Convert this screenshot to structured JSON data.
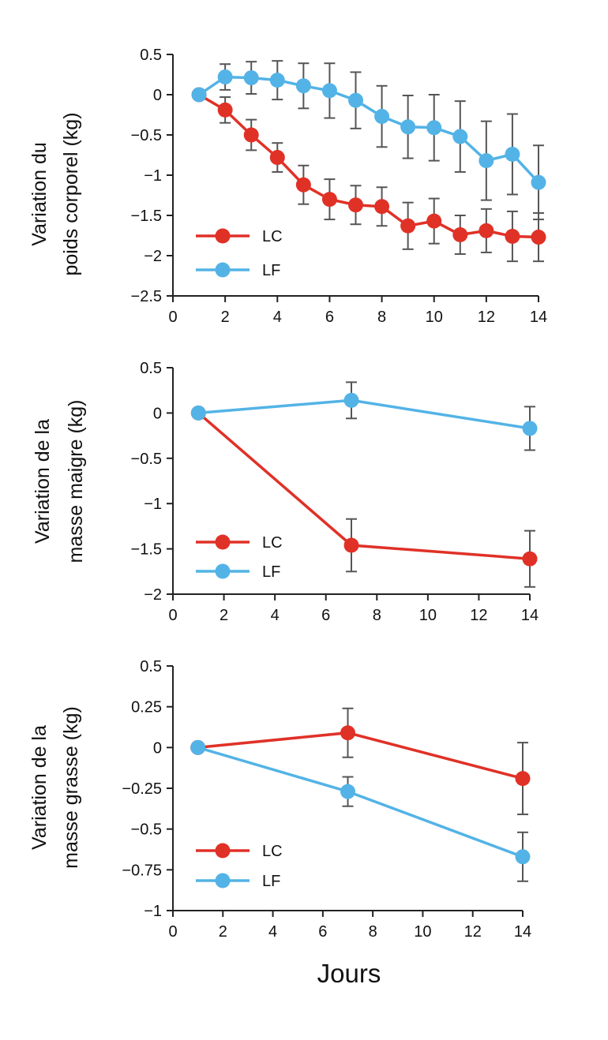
{
  "colors": {
    "LC": "#e03127",
    "LF": "#53b3e6",
    "axis": "#222222",
    "error": "#555555"
  },
  "chart_data": [
    {
      "type": "line",
      "ylabel_lines": [
        "Variation du",
        "poids corporel (kg)"
      ],
      "xlabel": "",
      "xlim": [
        0,
        14
      ],
      "ylim": [
        -2.5,
        0.5
      ],
      "xticks": [
        0,
        2,
        4,
        6,
        8,
        10,
        12,
        14
      ],
      "yticks": [
        0.5,
        0,
        -0.5,
        -1,
        -1.5,
        -2,
        -2.5
      ],
      "ytick_labels": [
        "0.5",
        "0",
        "−0.5",
        "−1",
        "−1.5",
        "−2",
        "−2.5"
      ],
      "grid": false,
      "legend": "bottom-left",
      "series": [
        {
          "name": "LC",
          "x": [
            1,
            2,
            3,
            4,
            5,
            6,
            7,
            8,
            9,
            10,
            11,
            12,
            13,
            14
          ],
          "y": [
            0,
            -0.19,
            -0.5,
            -0.78,
            -1.12,
            -1.3,
            -1.37,
            -1.39,
            -1.63,
            -1.57,
            -1.74,
            -1.69,
            -1.76,
            -1.77
          ],
          "err": [
            0,
            0.16,
            0.19,
            0.18,
            0.24,
            0.25,
            0.24,
            0.24,
            0.29,
            0.28,
            0.24,
            0.27,
            0.31,
            0.3
          ]
        },
        {
          "name": "LF",
          "x": [
            1,
            2,
            3,
            4,
            5,
            6,
            7,
            8,
            9,
            10,
            11,
            12,
            13,
            14
          ],
          "y": [
            0,
            0.22,
            0.21,
            0.18,
            0.11,
            0.05,
            -0.07,
            -0.27,
            -0.4,
            -0.41,
            -0.52,
            -0.82,
            -0.74,
            -1.09
          ],
          "err": [
            0,
            0.16,
            0.2,
            0.24,
            0.28,
            0.34,
            0.35,
            0.38,
            0.39,
            0.41,
            0.44,
            0.49,
            0.5,
            0.46
          ]
        }
      ]
    },
    {
      "type": "line",
      "ylabel_lines": [
        "Variation de la",
        "masse maigre (kg)"
      ],
      "xlabel": "",
      "xlim": [
        0,
        14
      ],
      "ylim": [
        -2,
        0.5
      ],
      "xticks": [
        0,
        2,
        4,
        6,
        8,
        10,
        12,
        14
      ],
      "yticks": [
        0.5,
        0,
        -0.5,
        -1,
        -1.5,
        -2
      ],
      "ytick_labels": [
        "0.5",
        "0",
        "−0.5",
        "−1",
        "−1.5",
        "−2"
      ],
      "grid": false,
      "legend": "bottom-left",
      "series": [
        {
          "name": "LC",
          "x": [
            1,
            7,
            14
          ],
          "y": [
            0,
            -1.46,
            -1.61
          ],
          "err": [
            0,
            0.29,
            0.31
          ]
        },
        {
          "name": "LF",
          "x": [
            1,
            7,
            14
          ],
          "y": [
            0,
            0.14,
            -0.17
          ],
          "err": [
            0,
            0.2,
            0.24
          ]
        }
      ]
    },
    {
      "type": "line",
      "ylabel_lines": [
        "Variation de la",
        "masse grasse (kg)"
      ],
      "xlabel": "Jours",
      "xlim": [
        0,
        14
      ],
      "ylim": [
        -1,
        0.5
      ],
      "xticks": [
        0,
        2,
        4,
        6,
        8,
        10,
        12,
        14
      ],
      "yticks": [
        0.5,
        0.25,
        0,
        -0.25,
        -0.5,
        -0.75,
        -1
      ],
      "ytick_labels": [
        "0.5",
        "0.25",
        "0",
        "−0.25",
        "−0.5",
        "−0.75",
        "−1"
      ],
      "grid": false,
      "legend": "bottom-left",
      "series": [
        {
          "name": "LC",
          "x": [
            1,
            7,
            14
          ],
          "y": [
            0,
            0.09,
            -0.19
          ],
          "err": [
            0,
            0.15,
            0.22
          ]
        },
        {
          "name": "LF",
          "x": [
            1,
            7,
            14
          ],
          "y": [
            0,
            -0.27,
            -0.67
          ],
          "err": [
            0,
            0.09,
            0.15
          ]
        }
      ]
    }
  ]
}
